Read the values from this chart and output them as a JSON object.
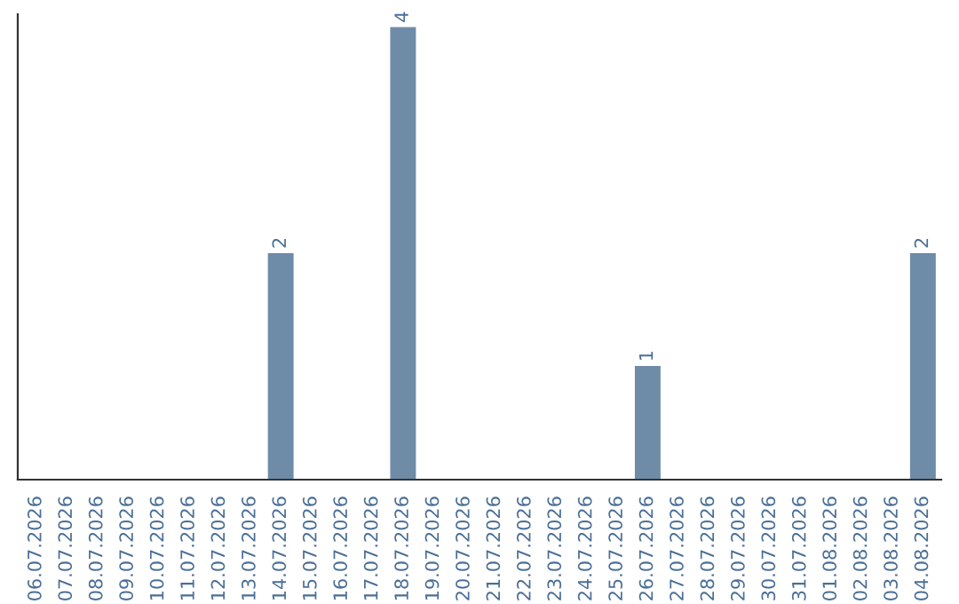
{
  "chart_data": {
    "type": "bar",
    "categories": [
      "06.07.2026",
      "07.07.2026",
      "08.07.2026",
      "09.07.2026",
      "10.07.2026",
      "11.07.2026",
      "12.07.2026",
      "13.07.2026",
      "14.07.2026",
      "15.07.2026",
      "16.07.2026",
      "17.07.2026",
      "18.07.2026",
      "19.07.2026",
      "20.07.2026",
      "21.07.2026",
      "22.07.2026",
      "23.07.2026",
      "24.07.2026",
      "25.07.2026",
      "26.07.2026",
      "27.07.2026",
      "28.07.2026",
      "29.07.2026",
      "30.07.2026",
      "31.07.2026",
      "01.08.2026",
      "02.08.2026",
      "03.08.2026",
      "04.08.2026"
    ],
    "values": [
      0,
      0,
      0,
      0,
      0,
      0,
      0,
      0,
      2,
      0,
      0,
      0,
      4,
      0,
      0,
      0,
      0,
      0,
      0,
      0,
      1,
      0,
      0,
      0,
      0,
      0,
      0,
      0,
      0,
      2
    ],
    "value_labels": [
      null,
      null,
      null,
      null,
      null,
      null,
      null,
      null,
      "2",
      null,
      null,
      null,
      "4",
      null,
      null,
      null,
      null,
      null,
      null,
      null,
      "1",
      null,
      null,
      null,
      null,
      null,
      null,
      null,
      null,
      "2"
    ],
    "color": "#6e8ca8",
    "tick_labels": "x",
    "grid": false,
    "legend": false
  }
}
